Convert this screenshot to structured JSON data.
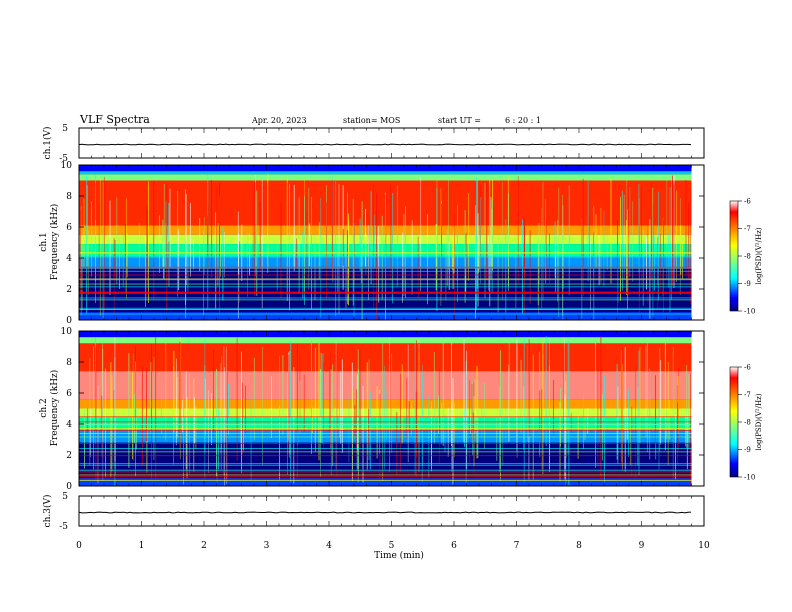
{
  "header": {
    "title": "VLF Spectra",
    "date": "Apr. 20, 2023",
    "station": "station= MOS",
    "start_label": "start  UT  =",
    "start_value": "6  : 20 : 1"
  },
  "chart_data": [
    {
      "type": "line",
      "panel": "ch1-waveform",
      "ylabel": "ch.1(V)",
      "ylim": [
        -5,
        5
      ],
      "ytick_labels": [
        "5",
        "-5"
      ],
      "xlim": [
        0,
        10
      ],
      "x": [
        0,
        9.8
      ],
      "y": [
        -0.5,
        -0.5
      ],
      "grid": false
    },
    {
      "type": "heatmap",
      "panel": "ch1-spectrogram",
      "ylabel": "ch.1\nFrequency (kHz)",
      "ylabel_line1": "ch.1",
      "ylabel_line2": "Frequency (kHz)",
      "ylim": [
        0,
        10
      ],
      "ytick_labels": [
        "0",
        "2",
        "4",
        "6",
        "8",
        "10"
      ],
      "xlim": [
        0,
        10
      ],
      "data_end_min": 9.8,
      "intense_band_khz": [
        5.5,
        9.0
      ],
      "colorbar": {
        "label": "log(PSD)(V²/Hz)",
        "range": [
          -10,
          -6
        ],
        "tick_labels": [
          "-6",
          "-7",
          "-8",
          "-9",
          "-10"
        ]
      }
    },
    {
      "type": "heatmap",
      "panel": "ch2-spectrogram",
      "ylabel": "ch.2\nFrequency (kHz)",
      "ylabel_line1": "ch.2",
      "ylabel_line2": "Frequency (kHz)",
      "ylim": [
        0,
        10
      ],
      "ytick_labels": [
        "0",
        "2",
        "4",
        "6",
        "8",
        "10"
      ],
      "xlim": [
        0,
        10
      ],
      "data_end_min": 9.8,
      "intense_band_khz": [
        5.0,
        9.2
      ],
      "colorbar": {
        "label": "log(PSD)(V²/Hz)",
        "range": [
          -10,
          -6
        ],
        "tick_labels": [
          "-6",
          "-7",
          "-8",
          "-9",
          "-10"
        ]
      }
    },
    {
      "type": "line",
      "panel": "ch3-waveform",
      "ylabel": "ch.3(V)",
      "ylim": [
        -5,
        5
      ],
      "ytick_labels": [
        "5",
        "-5"
      ],
      "xlim": [
        0,
        10
      ],
      "x": [
        0,
        9.8
      ],
      "y": [
        -0.5,
        -0.5
      ],
      "grid": false,
      "xlabel": "Time  (min)",
      "xtick_labels": [
        "0",
        "1",
        "2",
        "3",
        "4",
        "5",
        "6",
        "7",
        "8",
        "9",
        "10"
      ]
    }
  ],
  "colors": {
    "jet": [
      "#00007f",
      "#0000ff",
      "#007fff",
      "#00ffff",
      "#7fff7f",
      "#ffff00",
      "#ff7f00",
      "#ff0000",
      "#ffffff"
    ]
  }
}
